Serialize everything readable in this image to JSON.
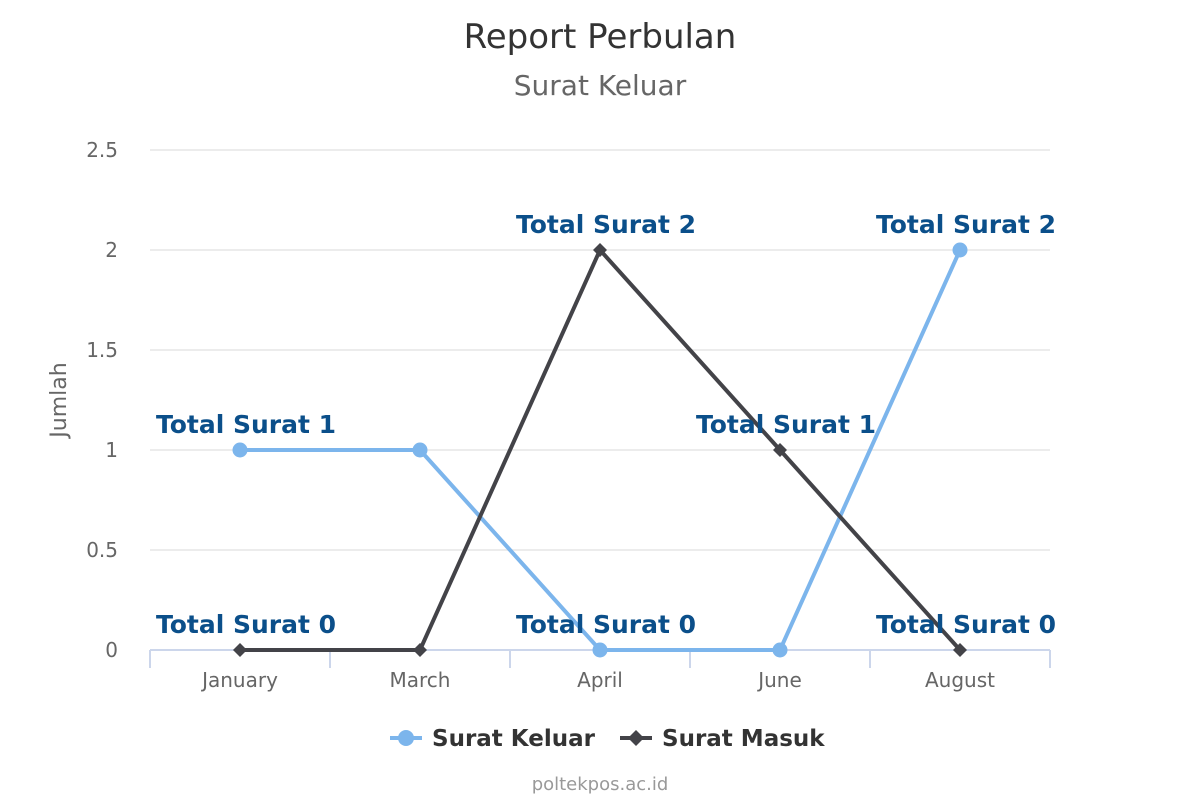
{
  "chart_data": {
    "type": "line",
    "title": "Report Perbulan",
    "subtitle": "Surat Keluar",
    "categories": [
      "January",
      "March",
      "April",
      "June",
      "August"
    ],
    "ylabel": "Jumlah",
    "xlabel": "",
    "ylim": [
      0,
      2.5
    ],
    "yticks": [
      "0",
      "0.5",
      "1",
      "1.5",
      "2",
      "2.5"
    ],
    "grid": true,
    "legend_position": "bottom-center",
    "data_label_prefix": "Total Surat ",
    "series": [
      {
        "name": "Surat Keluar",
        "values": [
          1,
          1,
          0,
          0,
          2
        ],
        "color": "#7cb5ec",
        "marker": "circle"
      },
      {
        "name": "Surat Masuk",
        "values": [
          0,
          0,
          2,
          1,
          0
        ],
        "color": "#434348",
        "marker": "diamond"
      }
    ],
    "data_labels": [
      {
        "text": "Total Surat 1",
        "category": "January",
        "value": 1
      },
      {
        "text": "Total Surat 0",
        "category": "January",
        "value": 0
      },
      {
        "text": "Total Surat 2",
        "category": "April",
        "value": 2
      },
      {
        "text": "Total Surat 0",
        "category": "April",
        "value": 0
      },
      {
        "text": "Total Surat 1",
        "category": "June",
        "value": 1
      },
      {
        "text": "Total Surat 2",
        "category": "August",
        "value": 2
      },
      {
        "text": "Total Surat 0",
        "category": "August",
        "value": 0
      }
    ],
    "credits": "poltekpos.ac.id"
  }
}
